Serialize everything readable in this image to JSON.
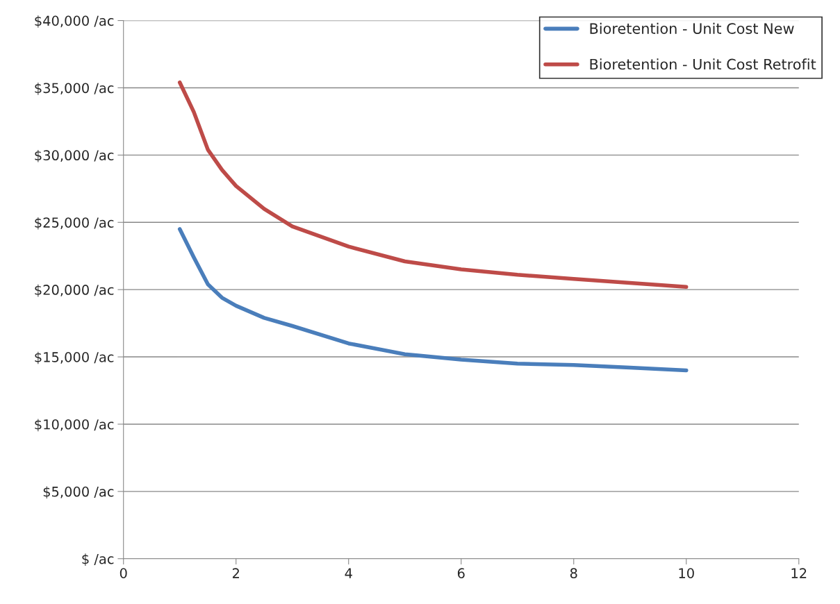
{
  "chart_data": {
    "type": "line",
    "xlim": [
      0,
      12
    ],
    "xticks": [
      0,
      2,
      4,
      6,
      8,
      10,
      12
    ],
    "ylim": [
      0,
      40000
    ],
    "yticks": [
      {
        "value": 0,
        "label": "$ /ac"
      },
      {
        "value": 5000,
        "label": "$5,000 /ac"
      },
      {
        "value": 10000,
        "label": "$10,000 /ac"
      },
      {
        "value": 15000,
        "label": "$15,000 /ac"
      },
      {
        "value": 20000,
        "label": "$20,000 /ac"
      },
      {
        "value": 25000,
        "label": "$25,000 /ac"
      },
      {
        "value": 30000,
        "label": "$30,000 /ac"
      },
      {
        "value": 35000,
        "label": "$35,000 /ac"
      },
      {
        "value": 40000,
        "label": "$40,000 /ac"
      }
    ],
    "grid": "y",
    "legend": "top right",
    "x": [
      1,
      1.25,
      1.5,
      1.75,
      2,
      2.5,
      3,
      4,
      5,
      6,
      7,
      8,
      9,
      10
    ],
    "series": [
      {
        "name": "Bioretention - Unit Cost New",
        "color": "#4a7ebb",
        "values": [
          24500,
          22400,
          20400,
          19400,
          18800,
          17900,
          17300,
          16000,
          15200,
          14800,
          14500,
          14400,
          14200,
          14000
        ]
      },
      {
        "name": "Bioretention - Unit Cost Retrofit",
        "color": "#be4b48",
        "values": [
          35400,
          33200,
          30400,
          28900,
          27700,
          26000,
          24700,
          23200,
          22100,
          21500,
          21100,
          20800,
          20500,
          20200
        ]
      }
    ]
  }
}
